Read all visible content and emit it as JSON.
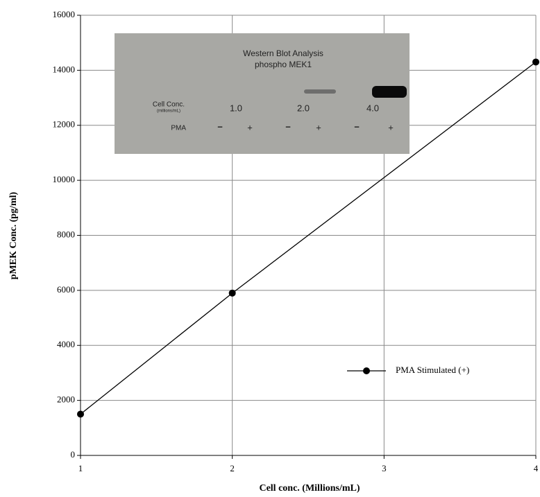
{
  "chart_data": {
    "type": "line",
    "x_label": "Cell conc. (Millions/mL)",
    "y_label": "pMEK Conc. (pg/ml)",
    "x": [
      1,
      2,
      4
    ],
    "series": [
      {
        "name": "PMA Stimulated (+)",
        "color": "#000000",
        "values": [
          1500,
          5900,
          14300
        ]
      }
    ],
    "xlim": [
      1,
      4
    ],
    "xticks": [
      1,
      2,
      3,
      4
    ],
    "ylim": [
      0,
      16000
    ],
    "yticks": [
      0,
      2000,
      4000,
      6000,
      8000,
      10000,
      12000,
      14000,
      16000
    ],
    "grid": true,
    "legend": "lower right"
  },
  "inset": {
    "title": [
      "Western Blot Analysis",
      "phospho MEK1"
    ],
    "row_labels": [
      "Cell Conc.",
      "(millions/mL)",
      "PMA"
    ],
    "concentrations": [
      "1.0",
      "2.0",
      "4.0"
    ],
    "pma": [
      "−",
      "+",
      "−",
      "+",
      "−",
      "+"
    ]
  }
}
